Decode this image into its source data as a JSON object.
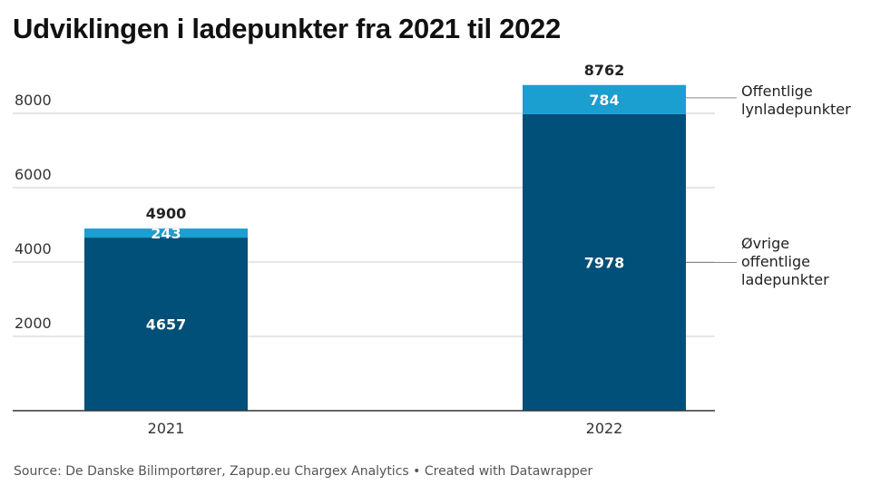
{
  "title": "Udviklingen i ladepunkter fra 2021 til 2022",
  "footer": {
    "source": "Source: De Danske Bilimportører, Zapup.eu Chargex Analytics",
    "separator": "•",
    "credit": "Created with Datawrapper"
  },
  "colors": {
    "dark_series": "#00507a",
    "light_series": "#1a9fd0",
    "gridline": "#cccccc",
    "axis": "#333333"
  },
  "chart_data": {
    "type": "bar",
    "stacked": true,
    "categories": [
      "2021",
      "2022"
    ],
    "series": [
      {
        "name": "Øvrige offentlige ladepunkter",
        "values": [
          4657,
          7978
        ],
        "color": "#00507a"
      },
      {
        "name": "Offentlige lynladepunkter",
        "values": [
          243,
          784
        ],
        "color": "#1a9fd0"
      }
    ],
    "totals": [
      4900,
      8762
    ],
    "title": "Udviklingen i ladepunkter fra 2021 til 2022",
    "xlabel": "",
    "ylabel": "",
    "ylim": [
      0,
      8000
    ],
    "yticks": [
      2000,
      4000,
      6000,
      8000
    ],
    "grid": true,
    "legend": "right-inline"
  }
}
